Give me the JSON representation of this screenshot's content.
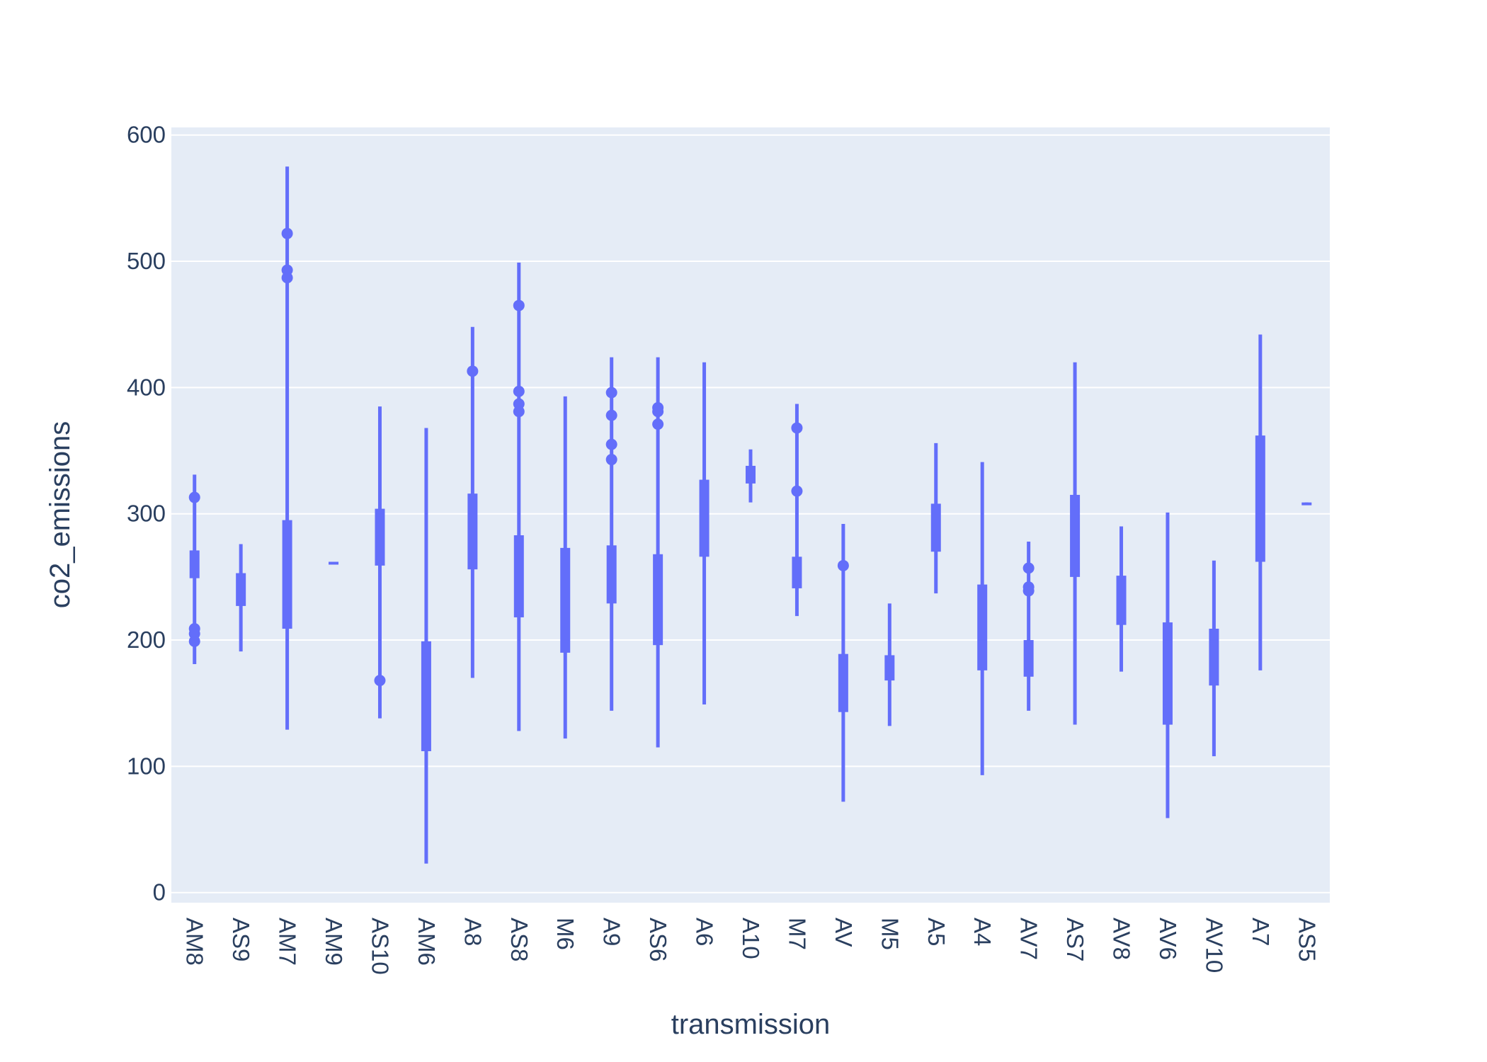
{
  "colors": {
    "plot_bg": "#e5ecf6",
    "grid": "#ffffff",
    "series": "#636efa",
    "text": "#2a3f5f"
  },
  "chart_data": {
    "type": "box",
    "title": "",
    "xlabel": "transmission",
    "ylabel": "co2_emissions",
    "ylim": [
      -8,
      606
    ],
    "yticks": [
      0,
      100,
      200,
      300,
      400,
      500,
      600
    ],
    "grid": true,
    "categories": [
      "AM8",
      "AS9",
      "AM7",
      "AM9",
      "AS10",
      "AM6",
      "A8",
      "AS8",
      "M6",
      "A9",
      "AS6",
      "A6",
      "A10",
      "M7",
      "AV",
      "M5",
      "A5",
      "A4",
      "AV7",
      "AS7",
      "AV8",
      "AV6",
      "AV10",
      "A7",
      "AS5"
    ],
    "boxes": [
      {
        "min": 181,
        "q1": 249,
        "q3": 271,
        "max": 331,
        "outliers": [
          313,
          209,
          205,
          199
        ]
      },
      {
        "min": 191,
        "q1": 227,
        "q3": 253,
        "max": 276,
        "outliers": []
      },
      {
        "min": 129,
        "q1": 209,
        "q3": 295,
        "max": 575,
        "outliers": [
          522,
          493,
          487
        ]
      },
      {
        "min": 260,
        "q1": 260,
        "q3": 262,
        "max": 262,
        "outliers": []
      },
      {
        "min": 138,
        "q1": 259,
        "q3": 304,
        "max": 385,
        "outliers": [
          168
        ]
      },
      {
        "min": 23,
        "q1": 112,
        "q3": 199,
        "max": 368,
        "outliers": []
      },
      {
        "min": 170,
        "q1": 256,
        "q3": 316,
        "max": 448,
        "outliers": [
          413
        ]
      },
      {
        "min": 128,
        "q1": 218,
        "q3": 283,
        "max": 499,
        "outliers": [
          465,
          397,
          387,
          381
        ]
      },
      {
        "min": 122,
        "q1": 190,
        "q3": 273,
        "max": 393,
        "outliers": []
      },
      {
        "min": 144,
        "q1": 229,
        "q3": 275,
        "max": 424,
        "outliers": [
          396,
          378,
          355,
          343
        ]
      },
      {
        "min": 115,
        "q1": 196,
        "q3": 268,
        "max": 424,
        "outliers": [
          384,
          381,
          371
        ]
      },
      {
        "min": 149,
        "q1": 266,
        "q3": 327,
        "max": 420,
        "outliers": []
      },
      {
        "min": 309,
        "q1": 324,
        "q3": 338,
        "max": 351,
        "outliers": []
      },
      {
        "min": 219,
        "q1": 241,
        "q3": 266,
        "max": 387,
        "outliers": [
          368,
          318
        ]
      },
      {
        "min": 72,
        "q1": 143,
        "q3": 189,
        "max": 292,
        "outliers": [
          259
        ]
      },
      {
        "min": 132,
        "q1": 168,
        "q3": 188,
        "max": 229,
        "outliers": []
      },
      {
        "min": 237,
        "q1": 270,
        "q3": 308,
        "max": 356,
        "outliers": []
      },
      {
        "min": 93,
        "q1": 176,
        "q3": 244,
        "max": 341,
        "outliers": []
      },
      {
        "min": 144,
        "q1": 171,
        "q3": 200,
        "max": 278,
        "outliers": [
          257,
          242,
          239
        ]
      },
      {
        "min": 133,
        "q1": 250,
        "q3": 315,
        "max": 420,
        "outliers": []
      },
      {
        "min": 175,
        "q1": 212,
        "q3": 251,
        "max": 290,
        "outliers": []
      },
      {
        "min": 59,
        "q1": 133,
        "q3": 214,
        "max": 301,
        "outliers": []
      },
      {
        "min": 108,
        "q1": 164,
        "q3": 209,
        "max": 263,
        "outliers": []
      },
      {
        "min": 176,
        "q1": 262,
        "q3": 362,
        "max": 442,
        "outliers": []
      },
      {
        "min": 307,
        "q1": 307,
        "q3": 309,
        "max": 309,
        "outliers": []
      }
    ]
  }
}
